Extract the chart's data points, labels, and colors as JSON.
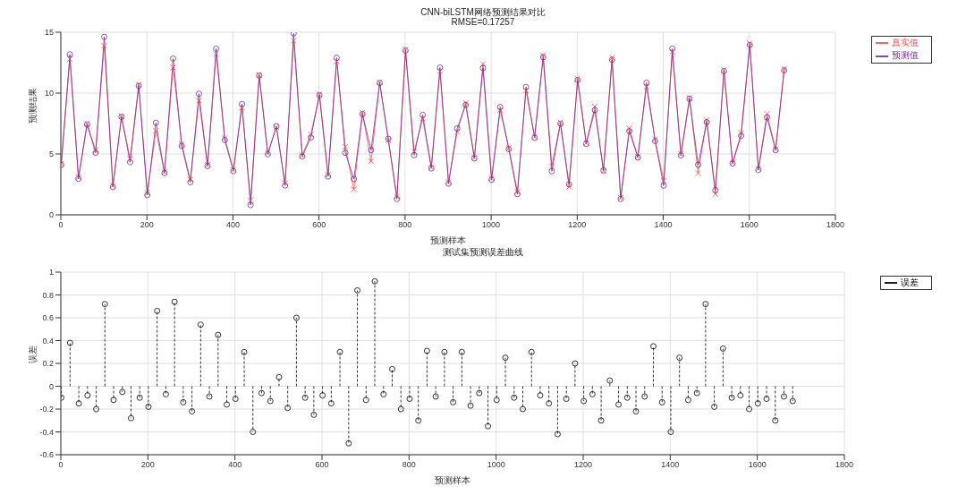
{
  "chart_data": [
    {
      "type": "line",
      "title": "CNN-biLSTM网络预测结果对比",
      "subtitle": "RMSE=0.17257",
      "xlabel": "预测样本",
      "ylabel": "预测结果",
      "x": [
        1,
        21,
        41,
        61,
        81,
        101,
        121,
        141,
        161,
        181,
        201,
        221,
        241,
        261,
        281,
        301,
        321,
        341,
        361,
        381,
        401,
        421,
        441,
        461,
        481,
        501,
        521,
        541,
        561,
        581,
        601,
        621,
        641,
        661,
        681,
        701,
        721,
        741,
        761,
        781,
        801,
        821,
        841,
        861,
        881,
        901,
        921,
        941,
        961,
        981,
        1001,
        1021,
        1041,
        1061,
        1081,
        1101,
        1121,
        1141,
        1161,
        1181,
        1201,
        1221,
        1241,
        1261,
        1281,
        1301,
        1321,
        1341,
        1361,
        1381,
        1401,
        1421,
        1441,
        1461,
        1481,
        1501,
        1521,
        1541,
        1561,
        1581,
        1601,
        1621,
        1641,
        1661,
        1681
      ],
      "series": [
        {
          "name": "真实值",
          "color": "#e8505b",
          "marker": "cross",
          "values": [
            4.2,
            12.8,
            3.1,
            7.5,
            5.3,
            13.9,
            2.4,
            8.1,
            4.6,
            10.7,
            1.8,
            6.9,
            3.5,
            12.1,
            5.8,
            2.9,
            9.4,
            4.1,
            13.2,
            6.3,
            3.7,
            8.8,
            1.2,
            11.5,
            5.1,
            7.2,
            2.6,
            14.3,
            4.9,
            6.6,
            9.9,
            3.3,
            12.6,
            5.6,
            2.1,
            8.4,
            4.4,
            10.9,
            6.1,
            1.5,
            13.6,
            5.2,
            7.9,
            3.9,
            11.8,
            2.7,
            6.8,
            9.2,
            4.7,
            12.4,
            3.0,
            8.6,
            5.5,
            1.9,
            10.2,
            6.4,
            13.1,
            4.0,
            7.6,
            2.3,
            11.2,
            5.9,
            8.9,
            3.6,
            12.9,
            1.4,
            7.1,
            4.8,
            10.5,
            6.2,
            2.8,
            13.4,
            5.0,
            9.6,
            3.4,
            7.8,
            1.7,
            11.9,
            4.3,
            6.7,
            14.1,
            3.8,
            8.3,
            5.4,
            12.0
          ]
        },
        {
          "name": "预测值",
          "color": "#7a2d8f",
          "marker": "circle",
          "values": [
            4.1,
            13.18,
            2.95,
            7.42,
            5.1,
            14.62,
            2.28,
            8.05,
            4.32,
            10.6,
            1.62,
            7.56,
            3.43,
            12.84,
            5.66,
            2.68,
            9.94,
            4.01,
            13.65,
            6.14,
            3.59,
            9.1,
            0.8,
            11.44,
            4.97,
            7.28,
            2.41,
            14.9,
            4.8,
            6.35,
            9.82,
            3.15,
            12.9,
            5.1,
            2.94,
            8.28,
            5.32,
            10.83,
            6.25,
            1.3,
            13.49,
            4.9,
            8.21,
            3.81,
            12.1,
            2.56,
            7.1,
            9.03,
            4.64,
            12.05,
            2.88,
            8.85,
            5.4,
            1.7,
            10.5,
            6.32,
            12.95,
            3.58,
            7.49,
            2.5,
            11.07,
            5.83,
            8.6,
            3.65,
            12.74,
            1.3,
            6.88,
            4.71,
            10.85,
            6.06,
            2.4,
            13.65,
            4.88,
            9.54,
            4.12,
            7.62,
            2.03,
            11.8,
            4.22,
            6.5,
            13.95,
            3.69,
            8.0,
            5.31,
            11.87
          ]
        }
      ],
      "xlim": [
        0,
        1800
      ],
      "xticks": [
        0,
        200,
        400,
        600,
        800,
        1000,
        1200,
        1400,
        1600,
        1800
      ],
      "ylim": [
        0,
        15
      ],
      "yticks": [
        0,
        5,
        10,
        15
      ],
      "grid": true,
      "legend": "top right"
    },
    {
      "type": "lollipop",
      "title": "测试集预测误差曲线",
      "xlabel": "预测样本",
      "ylabel": "误差",
      "x": [
        1,
        21,
        41,
        61,
        81,
        101,
        121,
        141,
        161,
        181,
        201,
        221,
        241,
        261,
        281,
        301,
        321,
        341,
        361,
        381,
        401,
        421,
        441,
        461,
        481,
        501,
        521,
        541,
        561,
        581,
        601,
        621,
        641,
        661,
        681,
        701,
        721,
        741,
        761,
        781,
        801,
        821,
        841,
        861,
        881,
        901,
        921,
        941,
        961,
        981,
        1001,
        1021,
        1041,
        1061,
        1081,
        1101,
        1121,
        1141,
        1161,
        1181,
        1201,
        1221,
        1241,
        1261,
        1281,
        1301,
        1321,
        1341,
        1361,
        1381,
        1401,
        1421,
        1441,
        1461,
        1481,
        1501,
        1521,
        1541,
        1561,
        1581,
        1601,
        1621,
        1641,
        1661,
        1681
      ],
      "series": [
        {
          "name": "误差",
          "color": "#000000",
          "marker": "circle",
          "values": [
            -0.1,
            0.38,
            -0.15,
            -0.08,
            -0.2,
            0.72,
            -0.12,
            -0.05,
            -0.28,
            -0.1,
            -0.18,
            0.66,
            -0.07,
            0.74,
            -0.14,
            -0.22,
            0.54,
            -0.09,
            0.45,
            -0.16,
            -0.11,
            0.3,
            -0.4,
            -0.06,
            -0.13,
            0.08,
            -0.19,
            0.6,
            -0.1,
            -0.25,
            -0.08,
            -0.15,
            0.3,
            -0.5,
            0.84,
            -0.12,
            0.92,
            -0.07,
            0.15,
            -0.2,
            -0.11,
            -0.3,
            0.31,
            -0.09,
            0.3,
            -0.14,
            0.3,
            -0.17,
            -0.06,
            -0.35,
            -0.12,
            0.25,
            -0.1,
            -0.2,
            0.3,
            -0.08,
            -0.15,
            -0.42,
            -0.11,
            0.2,
            -0.13,
            -0.07,
            -0.3,
            0.05,
            -0.16,
            -0.1,
            -0.22,
            -0.09,
            0.35,
            -0.14,
            -0.4,
            0.25,
            -0.12,
            -0.06,
            0.72,
            -0.18,
            0.33,
            -0.1,
            -0.08,
            -0.2,
            -0.15,
            -0.11,
            -0.3,
            -0.09,
            -0.13
          ]
        }
      ],
      "xlim": [
        0,
        1800
      ],
      "xticks": [
        0,
        200,
        400,
        600,
        800,
        1000,
        1200,
        1400,
        1600,
        1800
      ],
      "ylim": [
        -0.6,
        1
      ],
      "yticks": [
        -0.6,
        -0.4,
        -0.2,
        0,
        0.2,
        0.4,
        0.6,
        0.8,
        1
      ],
      "grid": true,
      "legend": "top right",
      "line_style": "dashed"
    }
  ]
}
